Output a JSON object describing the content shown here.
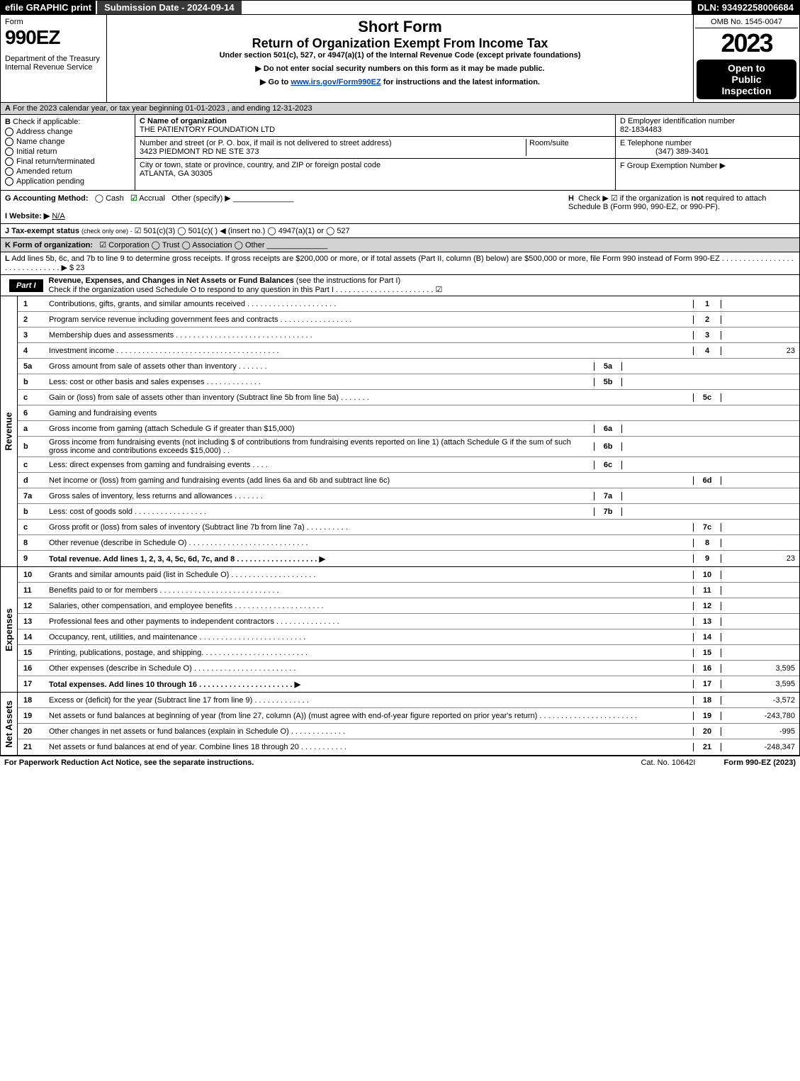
{
  "topbar": {
    "efile": "efile GRAPHIC print",
    "subdate": "Submission Date - 2024-09-14",
    "dln": "DLN: 93492258006684"
  },
  "header": {
    "form_label": "Form",
    "form_number": "990EZ",
    "dept": "Department of the Treasury",
    "irs": "Internal Revenue Service",
    "title1": "Short Form",
    "title2": "Return of Organization Exempt From Income Tax",
    "subtitle": "Under section 501(c), 527, or 4947(a)(1) of the Internal Revenue Code (except private foundations)",
    "instr1": "▶ Do not enter social security numbers on this form as it may be made public.",
    "instr2_pre": "▶ Go to ",
    "instr2_link": "www.irs.gov/Form990EZ",
    "instr2_post": " for instructions and the latest information.",
    "omb": "OMB No. 1545-0047",
    "year": "2023",
    "public1": "Open to",
    "public2": "Public",
    "public3": "Inspection"
  },
  "row_a": {
    "label": "A",
    "text": "For the 2023 calendar year, or tax year beginning 01-01-2023 , and ending 12-31-2023"
  },
  "section_b": {
    "label": "B",
    "hdr": "Check if applicable:",
    "items": [
      "Address change",
      "Name change",
      "Initial return",
      "Final return/terminated",
      "Amended return",
      "Application pending"
    ]
  },
  "section_c": {
    "name_lbl": "C Name of organization",
    "name": "THE PATIENTORY FOUNDATION LTD",
    "addr_lbl": "Number and street (or P. O. box, if mail is not delivered to street address)",
    "room_lbl": "Room/suite",
    "addr": "3423 PIEDMONT RD NE STE 373",
    "city_lbl": "City or town, state or province, country, and ZIP or foreign postal code",
    "city": "ATLANTA, GA  30305"
  },
  "section_d": {
    "ein_lbl": "D Employer identification number",
    "ein": "82-1834483",
    "phone_lbl": "E Telephone number",
    "phone": "(347) 389-3401",
    "grp_lbl": "F Group Exemption Number  ▶"
  },
  "row_g": {
    "label": "G Accounting Method:",
    "cash": "Cash",
    "accrual": "Accrual",
    "other": "Other (specify) ▶"
  },
  "row_h": {
    "label": "H",
    "text1": "Check ▶ ☑ if the organization is ",
    "not": "not",
    "text2": " required to attach Schedule B (Form 990, 990-EZ, or 990-PF)."
  },
  "row_i": {
    "label": "I Website: ▶",
    "val": "N/A"
  },
  "row_j": {
    "label": "J Tax-exempt status",
    "note": "(check only one) -",
    "opts": "☑ 501(c)(3)  ◯ 501(c)(  ) ◀ (insert no.)  ◯ 4947(a)(1) or  ◯ 527"
  },
  "row_k": {
    "label": "K Form of organization:",
    "opts": "☑ Corporation   ◯ Trust   ◯ Association   ◯ Other"
  },
  "row_l": {
    "label": "L",
    "text": "Add lines 5b, 6c, and 7b to line 9 to determine gross receipts. If gross receipts are $200,000 or more, or if total assets (Part II, column (B) below) are $500,000 or more, file Form 990 instead of Form 990-EZ . . . . . . . . . . . . . . . . . . . . . . . . . . . . . . ▶ $ 23"
  },
  "part1": {
    "tab": "Part I",
    "title": "Revenue, Expenses, and Changes in Net Assets or Fund Balances ",
    "note": "(see the instructions for Part I)",
    "check": "Check if the organization used Schedule O to respond to any question in this Part I . . . . . . . . . . . . . . . . . . . . . . . ☑"
  },
  "revenue_label": "Revenue",
  "expenses_label": "Expenses",
  "netassets_label": "Net Assets",
  "lines_rev": [
    {
      "n": "1",
      "t": "Contributions, gifts, grants, and similar amounts received . . . . . . . . . . . . . . . . . . . . .",
      "ref": "1",
      "v": ""
    },
    {
      "n": "2",
      "t": "Program service revenue including government fees and contracts . . . . . . . . . . . . . . . . .",
      "ref": "2",
      "v": ""
    },
    {
      "n": "3",
      "t": "Membership dues and assessments . . . . . . . . . . . . . . . . . . . . . . . . . . . . . . . .",
      "ref": "3",
      "v": ""
    },
    {
      "n": "4",
      "t": "Investment income . . . . . . . . . . . . . . . . . . . . . . . . . . . . . . . . . . . . . .",
      "ref": "4",
      "v": "23"
    },
    {
      "n": "5a",
      "t": "Gross amount from sale of assets other than inventory . . . . . . .",
      "sub": "5a",
      "sv": "",
      "shade": true
    },
    {
      "n": "b",
      "t": "Less: cost or other basis and sales expenses . . . . . . . . . . . . .",
      "sub": "5b",
      "sv": "",
      "shade": true
    },
    {
      "n": "c",
      "t": "Gain or (loss) from sale of assets other than inventory (Subtract line 5b from line 5a) . . . . . . .",
      "ref": "5c",
      "v": ""
    },
    {
      "n": "6",
      "t": "Gaming and fundraising events",
      "shade": true
    },
    {
      "n": "a",
      "t": "Gross income from gaming (attach Schedule G if greater than $15,000)",
      "sub": "6a",
      "sv": "",
      "shade": true
    },
    {
      "n": "b",
      "t": "Gross income from fundraising events (not including $                    of contributions from fundraising events reported on line 1) (attach Schedule G if the sum of such gross income and contributions exceeds $15,000)   . .",
      "sub": "6b",
      "sv": "",
      "shade": true
    },
    {
      "n": "c",
      "t": "Less: direct expenses from gaming and fundraising events     . . . .",
      "sub": "6c",
      "sv": "",
      "shade": true
    },
    {
      "n": "d",
      "t": "Net income or (loss) from gaming and fundraising events (add lines 6a and 6b and subtract line 6c)",
      "ref": "6d",
      "v": ""
    },
    {
      "n": "7a",
      "t": "Gross sales of inventory, less returns and allowances . . . . . . .",
      "sub": "7a",
      "sv": "",
      "shade": true
    },
    {
      "n": "b",
      "t": "Less: cost of goods sold           . . . . . . . . . . . . . . . . .",
      "sub": "7b",
      "sv": "",
      "shade": true
    },
    {
      "n": "c",
      "t": "Gross profit or (loss) from sales of inventory (Subtract line 7b from line 7a) . . . . . . . . . .",
      "ref": "7c",
      "v": ""
    },
    {
      "n": "8",
      "t": "Other revenue (describe in Schedule O) . . . . . . . . . . . . . . . . . . . . . . . . . . . .",
      "ref": "8",
      "v": ""
    },
    {
      "n": "9",
      "t": "Total revenue. Add lines 1, 2, 3, 4, 5c, 6d, 7c, and 8  . . . . . . . . . . . . . . . . . . .  ▶",
      "ref": "9",
      "v": "23",
      "bold": true
    }
  ],
  "lines_exp": [
    {
      "n": "10",
      "t": "Grants and similar amounts paid (list in Schedule O) . . . . . . . . . . . . . . . . . . . .",
      "ref": "10",
      "v": ""
    },
    {
      "n": "11",
      "t": "Benefits paid to or for members       . . . . . . . . . . . . . . . . . . . . . . . . . . . .",
      "ref": "11",
      "v": ""
    },
    {
      "n": "12",
      "t": "Salaries, other compensation, and employee benefits . . . . . . . . . . . . . . . . . . . . .",
      "ref": "12",
      "v": ""
    },
    {
      "n": "13",
      "t": "Professional fees and other payments to independent contractors . . . . . . . . . . . . . . .",
      "ref": "13",
      "v": ""
    },
    {
      "n": "14",
      "t": "Occupancy, rent, utilities, and maintenance . . . . . . . . . . . . . . . . . . . . . . . . .",
      "ref": "14",
      "v": ""
    },
    {
      "n": "15",
      "t": "Printing, publications, postage, and shipping. . . . . . . . . . . . . . . . . . . . . . . . .",
      "ref": "15",
      "v": ""
    },
    {
      "n": "16",
      "t": "Other expenses (describe in Schedule O)      . . . . . . . . . . . . . . . . . . . . . . . .",
      "ref": "16",
      "v": "3,595"
    },
    {
      "n": "17",
      "t": "Total expenses. Add lines 10 through 16      . . . . . . . . . . . . . . . . . . . . . .  ▶",
      "ref": "17",
      "v": "3,595",
      "bold": true
    }
  ],
  "lines_net": [
    {
      "n": "18",
      "t": "Excess or (deficit) for the year (Subtract line 17 from line 9)         . . . . . . . . . . . . .",
      "ref": "18",
      "v": "-3,572"
    },
    {
      "n": "19",
      "t": "Net assets or fund balances at beginning of year (from line 27, column (A)) (must agree with end-of-year figure reported on prior year's return) . . . . . . . . . . . . . . . . . . . . . . .",
      "ref": "19",
      "v": "-243,780"
    },
    {
      "n": "20",
      "t": "Other changes in net assets or fund balances (explain in Schedule O) . . . . . . . . . . . . .",
      "ref": "20",
      "v": "-995"
    },
    {
      "n": "21",
      "t": "Net assets or fund balances at end of year. Combine lines 18 through 20 . . . . . . . . . . .",
      "ref": "21",
      "v": "-248,347"
    }
  ],
  "footer": {
    "left": "For Paperwork Reduction Act Notice, see the separate instructions.",
    "cat": "Cat. No. 10642I",
    "form": "Form 990-EZ (2023)"
  }
}
